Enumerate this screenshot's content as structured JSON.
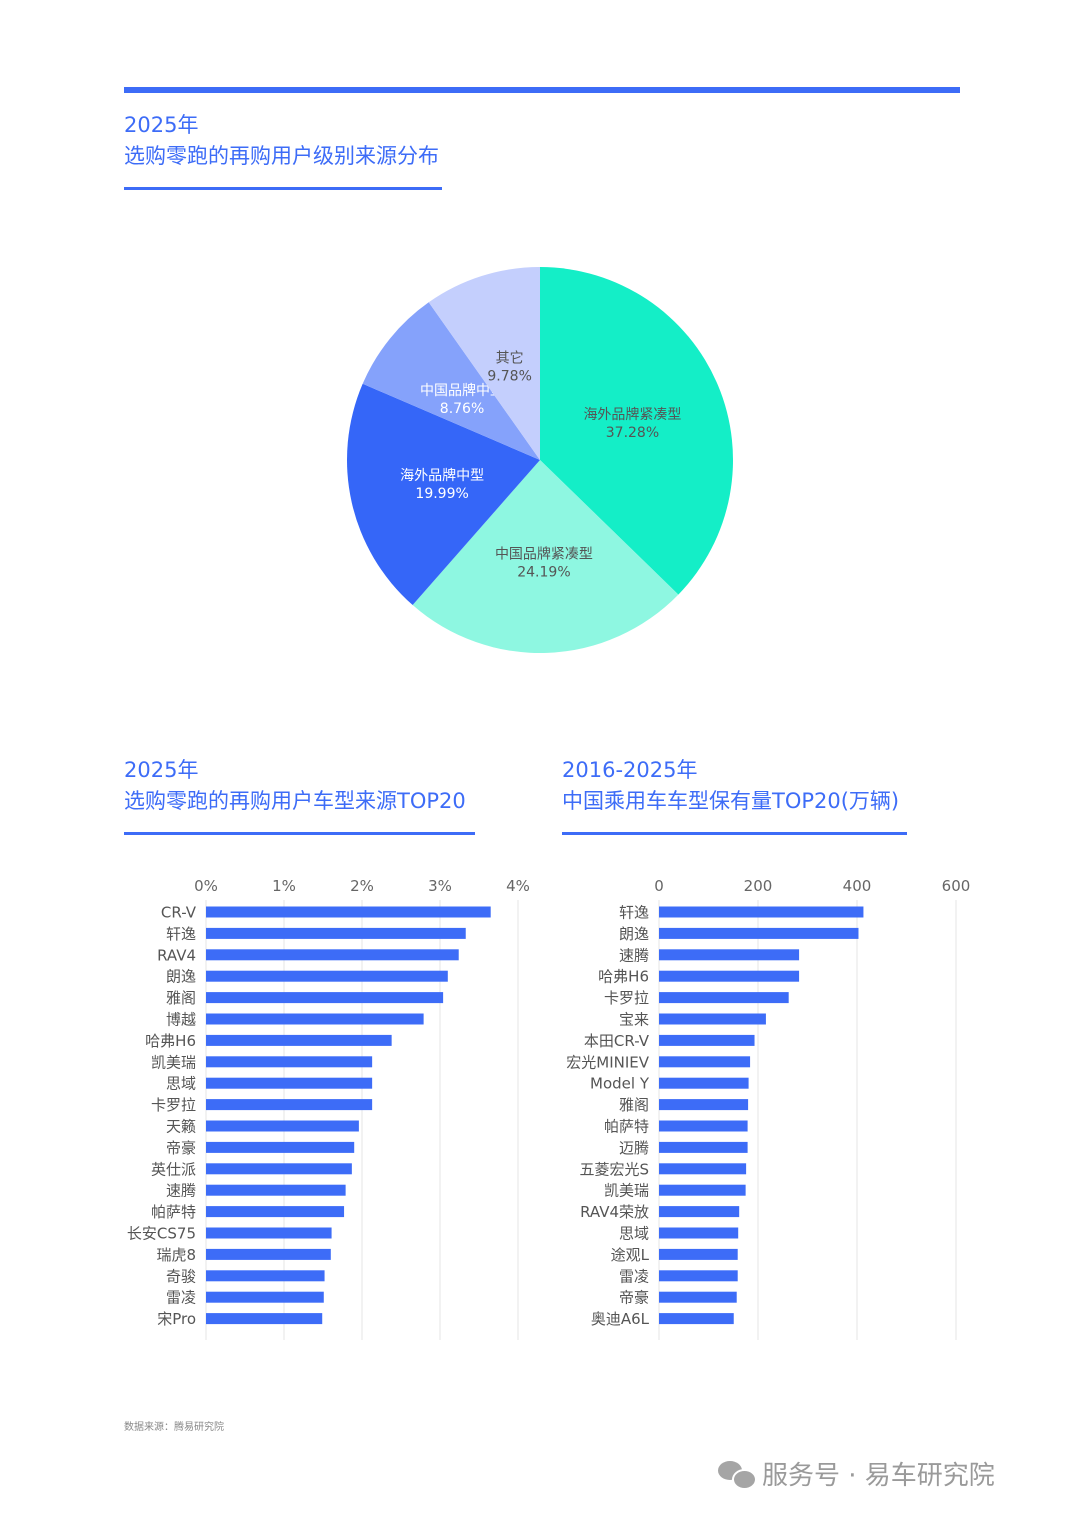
{
  "colors": {
    "accent": "#3d6cf7",
    "bar": "#3d6cf7"
  },
  "sections": {
    "pie": {
      "year": "2025年",
      "title": "选购零跑的再购用户级别来源分布"
    },
    "left": {
      "year": "2025年",
      "title": "选购零跑的再购用户车型来源TOP20"
    },
    "right": {
      "year": "2016-2025年",
      "title": "中国乘用车车型保有量TOP20(万辆)"
    }
  },
  "chart_data": [
    {
      "type": "pie",
      "slices": [
        {
          "label": "海外品牌紧凑型",
          "value": 37.28,
          "value_label": "37.28%",
          "color": "#14eec7",
          "text_color": "#555555"
        },
        {
          "label": "中国品牌紧凑型",
          "value": 24.19,
          "value_label": "24.19%",
          "color": "#8ef7e1",
          "text_color": "#555555"
        },
        {
          "label": "海外品牌中型",
          "value": 19.99,
          "value_label": "19.99%",
          "color": "#3566f8",
          "text_color": "#ffffff"
        },
        {
          "label": "中国品牌中型",
          "value": 8.76,
          "value_label": "8.76%",
          "color": "#85a2fb",
          "text_color": "#ffffff"
        },
        {
          "label": "其它",
          "value": 9.78,
          "value_label": "9.78%",
          "color": "#c4cffd",
          "text_color": "#555555"
        }
      ]
    },
    {
      "type": "bar",
      "orientation": "horizontal",
      "categories": [
        "CR-V",
        "轩逸",
        "RAV4",
        "朗逸",
        "雅阁",
        "博越",
        "哈弗H6",
        "凯美瑞",
        "思域",
        "卡罗拉",
        "天籁",
        "帝豪",
        "英仕派",
        "速腾",
        "帕萨特",
        "长安CS75",
        "瑞虎8",
        "奇骏",
        "雷凌",
        "宋Pro"
      ],
      "values": [
        3.65,
        3.33,
        3.24,
        3.1,
        3.04,
        2.79,
        2.38,
        2.13,
        2.13,
        2.13,
        1.96,
        1.9,
        1.87,
        1.79,
        1.77,
        1.61,
        1.6,
        1.52,
        1.51,
        1.49
      ],
      "xlim": [
        0,
        4
      ],
      "ticks": [
        0,
        1,
        2,
        3,
        4
      ],
      "tick_labels": [
        "0%",
        "1%",
        "2%",
        "3%",
        "4%"
      ],
      "grid": true
    },
    {
      "type": "bar",
      "orientation": "horizontal",
      "categories": [
        "轩逸",
        "朗逸",
        "速腾",
        "哈弗H6",
        "卡罗拉",
        "宝来",
        "本田CR-V",
        "宏光MINIEV",
        "Model Y",
        "雅阁",
        "帕萨特",
        "迈腾",
        "五菱宏光S",
        "凯美瑞",
        "RAV4荣放",
        "思域",
        "途观L",
        "雷凌",
        "帝豪",
        "奥迪A6L"
      ],
      "values": [
        413,
        403,
        283,
        283,
        262,
        216,
        193,
        184,
        181,
        180,
        179,
        179,
        176,
        175,
        162,
        160,
        159,
        159,
        157,
        151
      ],
      "xlim": [
        0,
        600
      ],
      "ticks": [
        0,
        200,
        400,
        600
      ],
      "tick_labels": [
        "0",
        "200",
        "400",
        "600"
      ],
      "grid": true
    }
  ],
  "footer": {
    "source": "数据来源：腾易研究院",
    "watermark": "服务号 · 易车研究院"
  }
}
